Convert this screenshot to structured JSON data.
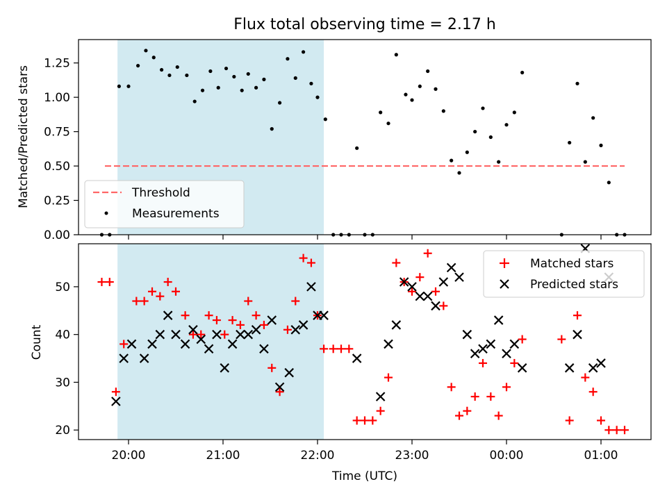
{
  "chart_data": [
    {
      "type": "scatter",
      "title": "Flux total observing time = 2.17 h",
      "xlabel": "",
      "ylabel": "Matched/Predicted stars",
      "ylim": [
        0.0,
        1.42
      ],
      "yticks": [
        "0.00",
        "0.25",
        "0.50",
        "0.75",
        "1.00",
        "1.25"
      ],
      "highlight_span": {
        "x_start": "19:53",
        "x_end": "22:04",
        "color": "#add8e6"
      },
      "threshold": {
        "name": "Threshold",
        "y": 0.5,
        "x_start": "19:45",
        "x_end": "01:15",
        "color": "#ff6666"
      },
      "legend": {
        "position": "lower-left",
        "entries": [
          "Threshold",
          "Measurements"
        ]
      },
      "series": [
        {
          "name": "Measurements",
          "color": "#000000",
          "points": [
            [
              "19:43",
              0.0
            ],
            [
              "19:48",
              0.0
            ],
            [
              "19:54",
              1.08
            ],
            [
              "20:00",
              1.08
            ],
            [
              "20:06",
              1.23
            ],
            [
              "20:11",
              1.34
            ],
            [
              "20:16",
              1.29
            ],
            [
              "20:21",
              1.2
            ],
            [
              "20:26",
              1.16
            ],
            [
              "20:31",
              1.22
            ],
            [
              "20:37",
              1.16
            ],
            [
              "20:42",
              0.97
            ],
            [
              "20:47",
              1.05
            ],
            [
              "20:52",
              1.19
            ],
            [
              "20:57",
              1.07
            ],
            [
              "21:02",
              1.21
            ],
            [
              "21:07",
              1.15
            ],
            [
              "21:12",
              1.05
            ],
            [
              "21:16",
              1.17
            ],
            [
              "21:21",
              1.07
            ],
            [
              "21:26",
              1.13
            ],
            [
              "21:31",
              0.77
            ],
            [
              "21:36",
              0.96
            ],
            [
              "21:41",
              1.28
            ],
            [
              "21:46",
              1.14
            ],
            [
              "21:51",
              1.33
            ],
            [
              "21:56",
              1.1
            ],
            [
              "22:00",
              1.0
            ],
            [
              "22:05",
              0.84
            ],
            [
              "22:10",
              0.0
            ],
            [
              "22:15",
              0.0
            ],
            [
              "22:20",
              0.0
            ],
            [
              "22:25",
              0.63
            ],
            [
              "22:30",
              0.0
            ],
            [
              "22:35",
              0.0
            ],
            [
              "22:40",
              0.89
            ],
            [
              "22:45",
              0.81
            ],
            [
              "22:50",
              1.31
            ],
            [
              "22:56",
              1.02
            ],
            [
              "23:00",
              0.98
            ],
            [
              "23:05",
              1.08
            ],
            [
              "23:10",
              1.19
            ],
            [
              "23:15",
              1.06
            ],
            [
              "23:20",
              0.9
            ],
            [
              "23:25",
              0.54
            ],
            [
              "23:30",
              0.45
            ],
            [
              "23:35",
              0.6
            ],
            [
              "23:40",
              0.75
            ],
            [
              "23:45",
              0.92
            ],
            [
              "23:50",
              0.71
            ],
            [
              "23:55",
              0.53
            ],
            [
              "00:00",
              0.8
            ],
            [
              "00:05",
              0.89
            ],
            [
              "00:10",
              1.18
            ],
            [
              "00:35",
              0.0
            ],
            [
              "00:40",
              0.67
            ],
            [
              "00:45",
              1.1
            ],
            [
              "00:50",
              0.53
            ],
            [
              "00:55",
              0.85
            ],
            [
              "01:00",
              0.65
            ],
            [
              "01:05",
              0.38
            ],
            [
              "01:10",
              0.0
            ],
            [
              "01:15",
              0.0
            ]
          ]
        }
      ]
    },
    {
      "type": "scatter",
      "title": "",
      "xlabel": "Time (UTC)",
      "ylabel": "Count",
      "ylim": [
        18,
        59
      ],
      "yticks": [
        "20",
        "30",
        "40",
        "50"
      ],
      "xticks": [
        "20:00",
        "21:00",
        "22:00",
        "23:00",
        "00:00",
        "01:00"
      ],
      "highlight_span": {
        "x_start": "19:53",
        "x_end": "22:04",
        "color": "#add8e6"
      },
      "legend": {
        "position": "upper-right",
        "entries": [
          "Matched stars",
          "Predicted stars"
        ]
      },
      "series": [
        {
          "name": "Matched stars",
          "marker": "plus",
          "color": "#ff0000",
          "points": [
            [
              "19:43",
              51
            ],
            [
              "19:48",
              51
            ],
            [
              "19:52",
              28
            ],
            [
              "19:57",
              38
            ],
            [
              "20:05",
              47
            ],
            [
              "20:10",
              47
            ],
            [
              "20:15",
              49
            ],
            [
              "20:20",
              48
            ],
            [
              "20:25",
              51
            ],
            [
              "20:30",
              49
            ],
            [
              "20:36",
              44
            ],
            [
              "20:41",
              40
            ],
            [
              "20:46",
              40
            ],
            [
              "20:51",
              44
            ],
            [
              "20:56",
              43
            ],
            [
              "21:01",
              40
            ],
            [
              "21:06",
              43
            ],
            [
              "21:11",
              42
            ],
            [
              "21:16",
              47
            ],
            [
              "21:21",
              44
            ],
            [
              "21:26",
              42
            ],
            [
              "21:31",
              33
            ],
            [
              "21:36",
              28
            ],
            [
              "21:41",
              41
            ],
            [
              "21:46",
              47
            ],
            [
              "21:51",
              56
            ],
            [
              "21:56",
              55
            ],
            [
              "22:00",
              44
            ],
            [
              "22:04",
              37
            ],
            [
              "22:10",
              37
            ],
            [
              "22:15",
              37
            ],
            [
              "22:20",
              37
            ],
            [
              "22:25",
              22
            ],
            [
              "22:30",
              22
            ],
            [
              "22:35",
              22
            ],
            [
              "22:40",
              24
            ],
            [
              "22:45",
              31
            ],
            [
              "22:50",
              55
            ],
            [
              "22:55",
              51
            ],
            [
              "23:00",
              49
            ],
            [
              "23:05",
              52
            ],
            [
              "23:10",
              57
            ],
            [
              "23:15",
              49
            ],
            [
              "23:20",
              46
            ],
            [
              "23:25",
              29
            ],
            [
              "23:30",
              23
            ],
            [
              "23:35",
              24
            ],
            [
              "23:40",
              27
            ],
            [
              "23:45",
              34
            ],
            [
              "23:50",
              27
            ],
            [
              "23:55",
              23
            ],
            [
              "00:00",
              29
            ],
            [
              "00:05",
              34
            ],
            [
              "00:10",
              39
            ],
            [
              "00:35",
              39
            ],
            [
              "00:40",
              22
            ],
            [
              "00:45",
              44
            ],
            [
              "00:50",
              31
            ],
            [
              "00:55",
              28
            ],
            [
              "01:00",
              22
            ],
            [
              "01:05",
              20
            ],
            [
              "01:10",
              20
            ],
            [
              "01:15",
              20
            ]
          ]
        },
        {
          "name": "Predicted stars",
          "marker": "x",
          "color": "#000000",
          "points": [
            [
              "19:52",
              26
            ],
            [
              "19:57",
              35
            ],
            [
              "20:02",
              38
            ],
            [
              "20:10",
              35
            ],
            [
              "20:15",
              38
            ],
            [
              "20:20",
              40
            ],
            [
              "20:25",
              44
            ],
            [
              "20:30",
              40
            ],
            [
              "20:36",
              38
            ],
            [
              "20:41",
              41
            ],
            [
              "20:46",
              39
            ],
            [
              "20:51",
              37
            ],
            [
              "20:56",
              40
            ],
            [
              "21:01",
              33
            ],
            [
              "21:06",
              38
            ],
            [
              "21:11",
              40
            ],
            [
              "21:16",
              40
            ],
            [
              "21:21",
              41
            ],
            [
              "21:26",
              37
            ],
            [
              "21:31",
              43
            ],
            [
              "21:36",
              29
            ],
            [
              "21:42",
              32
            ],
            [
              "21:46",
              41
            ],
            [
              "21:51",
              42
            ],
            [
              "21:56",
              50
            ],
            [
              "22:00",
              44
            ],
            [
              "22:04",
              44
            ],
            [
              "22:25",
              35
            ],
            [
              "22:40",
              27
            ],
            [
              "22:45",
              38
            ],
            [
              "22:50",
              42
            ],
            [
              "22:55",
              51
            ],
            [
              "23:00",
              50
            ],
            [
              "23:05",
              48
            ],
            [
              "23:10",
              48
            ],
            [
              "23:15",
              46
            ],
            [
              "23:20",
              51
            ],
            [
              "23:25",
              54
            ],
            [
              "23:30",
              52
            ],
            [
              "23:35",
              40
            ],
            [
              "23:40",
              36
            ],
            [
              "23:45",
              37
            ],
            [
              "23:50",
              38
            ],
            [
              "23:55",
              43
            ],
            [
              "00:00",
              36
            ],
            [
              "00:05",
              38
            ],
            [
              "00:10",
              33
            ],
            [
              "00:40",
              33
            ],
            [
              "00:45",
              40
            ],
            [
              "00:50",
              58
            ],
            [
              "00:55",
              33
            ],
            [
              "01:00",
              34
            ],
            [
              "01:05",
              52
            ]
          ]
        }
      ]
    }
  ]
}
